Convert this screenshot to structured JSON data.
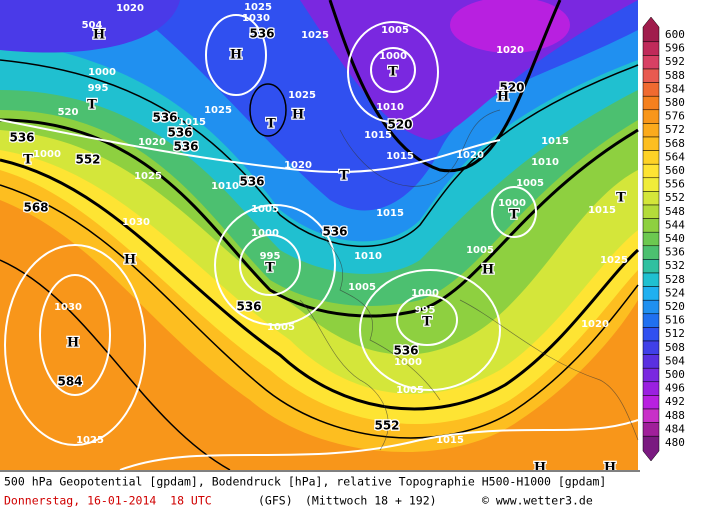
{
  "map": {
    "contour_labels": [
      504,
      1020,
      1025,
      1030,
      536,
      1025,
      1005,
      1000,
      1010,
      1015,
      520,
      1015,
      1020,
      520,
      1020,
      1025,
      1025,
      1020,
      536,
      536,
      536,
      1015,
      1020,
      1025,
      536,
      552,
      1000,
      520,
      995,
      1000,
      568,
      1030,
      1030,
      584,
      1025,
      1010,
      536,
      1005,
      1000,
      995,
      536,
      1010,
      1005,
      536,
      1005,
      1000,
      995,
      536,
      1000,
      1005,
      552,
      1015,
      1005,
      1005,
      1000,
      1010,
      1015,
      1015,
      1025,
      1020,
      1015
    ],
    "pressure_centers": [
      "H",
      "H",
      "H",
      "T",
      "T",
      "T",
      "T",
      "T",
      "H",
      "H",
      "T",
      "H",
      "T",
      "T",
      "H",
      "H",
      "H",
      "T"
    ]
  },
  "legend": {
    "levels": [
      600,
      596,
      592,
      588,
      584,
      580,
      576,
      572,
      568,
      564,
      560,
      556,
      552,
      548,
      544,
      540,
      536,
      532,
      528,
      524,
      520,
      516,
      512,
      508,
      504,
      500,
      496,
      492,
      488,
      484,
      480
    ],
    "colors": [
      "#a01c4c",
      "#c02a5a",
      "#d84064",
      "#e85a50",
      "#f06a30",
      "#f5801e",
      "#f8961a",
      "#fbaa1c",
      "#fdbe20",
      "#fed226",
      "#fee433",
      "#f0ec3a",
      "#d4e63a",
      "#b4dc3a",
      "#8ed040",
      "#6cc850",
      "#4cc070",
      "#30c0a0",
      "#20c0d0",
      "#20b0f0",
      "#2090f0",
      "#2070f0",
      "#3050f0",
      "#4040e8",
      "#5a30e0",
      "#7a28e0",
      "#9a20e0",
      "#b820e0",
      "#c830c8",
      "#a0209a",
      "#7a1a80"
    ]
  },
  "footer": {
    "description": "500 hPa Geopotential [gpdam], Bodendruck [hPa], relative Topographie H500-H1000 [gpdam]",
    "date": "Donnerstag, 16-01-2014  18 UTC",
    "model": "(GFS)",
    "run": "(Mittwoch 18 + 192)",
    "copyright": "© www.wetter3.de"
  }
}
